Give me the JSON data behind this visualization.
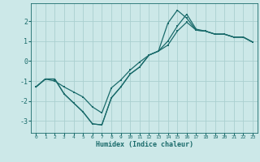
{
  "xlabel": "Humidex (Indice chaleur)",
  "bg_color": "#cce8e8",
  "grid_color": "#aacfcf",
  "line_color": "#1a6b6b",
  "xlim": [
    -0.5,
    23.5
  ],
  "ylim": [
    -3.6,
    2.9
  ],
  "xticks": [
    0,
    1,
    2,
    3,
    4,
    5,
    6,
    7,
    8,
    9,
    10,
    11,
    12,
    13,
    14,
    15,
    16,
    17,
    18,
    19,
    20,
    21,
    22,
    23
  ],
  "yticks": [
    -3,
    -2,
    -1,
    0,
    1,
    2
  ],
  "line1_x": [
    0,
    1,
    2,
    3,
    4,
    5,
    6,
    7,
    8,
    9,
    10,
    11,
    12,
    13,
    14,
    15,
    16,
    17,
    18,
    19,
    20,
    21,
    22,
    23
  ],
  "line1_y": [
    -1.3,
    -0.9,
    -0.9,
    -1.65,
    -2.1,
    -2.55,
    -3.15,
    -3.2,
    -1.85,
    -1.3,
    -0.65,
    -0.3,
    0.3,
    0.5,
    1.0,
    1.75,
    2.35,
    1.6,
    1.5,
    1.35,
    1.35,
    1.2,
    1.2,
    0.95
  ],
  "line2_x": [
    0,
    1,
    2,
    3,
    4,
    5,
    6,
    7,
    8,
    9,
    10,
    11,
    12,
    13,
    14,
    15,
    16,
    17,
    18,
    19,
    20,
    21,
    22,
    23
  ],
  "line2_y": [
    -1.3,
    -0.9,
    -0.9,
    -1.65,
    -2.1,
    -2.55,
    -3.15,
    -3.2,
    -1.85,
    -1.3,
    -0.65,
    -0.3,
    0.3,
    0.5,
    1.9,
    2.55,
    2.15,
    1.55,
    1.5,
    1.35,
    1.35,
    1.2,
    1.2,
    0.95
  ],
  "line3_x": [
    0,
    1,
    2,
    3,
    4,
    5,
    6,
    7,
    8,
    9,
    10,
    11,
    12,
    13,
    14,
    15,
    16,
    17,
    18,
    19,
    20,
    21,
    22,
    23
  ],
  "line3_y": [
    -1.3,
    -0.9,
    -1.0,
    -1.3,
    -1.55,
    -1.8,
    -2.3,
    -2.6,
    -1.35,
    -0.95,
    -0.45,
    -0.05,
    0.3,
    0.5,
    0.8,
    1.5,
    1.95,
    1.55,
    1.5,
    1.35,
    1.35,
    1.2,
    1.2,
    0.95
  ]
}
